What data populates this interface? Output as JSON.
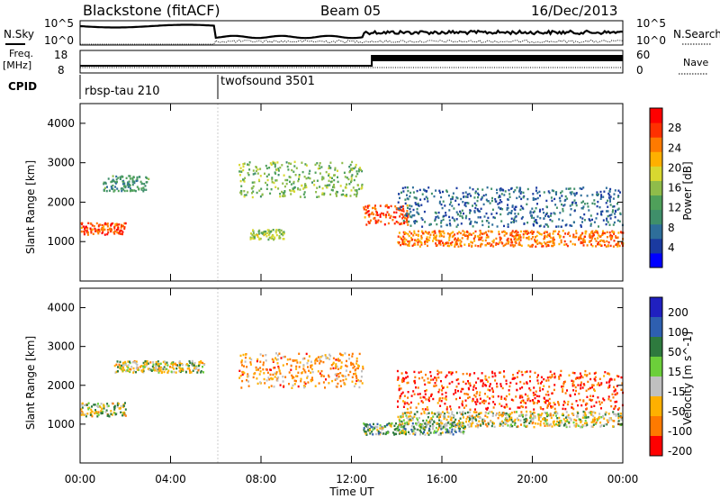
{
  "header": {
    "station": "Blackstone (fitACF)",
    "beam": "Beam 05",
    "date": "16/Dec/2013"
  },
  "noise_panel": {
    "left_label": "N.Sky",
    "right_label": "N.Search",
    "left_ticks": [
      "10^5",
      "10^0"
    ],
    "right_ticks": [
      "10^5",
      "10^0"
    ]
  },
  "freq_panel": {
    "left_label_1": "Freq.",
    "left_label_2": "[MHz]",
    "left_ticks": [
      "18",
      "8"
    ],
    "right_label": "Nave",
    "right_ticks": [
      "60",
      "0"
    ]
  },
  "cpid": {
    "label": "CPID",
    "modes": [
      {
        "name": "rbsp-tau 210",
        "start_hour": 0
      },
      {
        "name": "twofsound 3501",
        "start_hour": 6
      }
    ]
  },
  "chart_data": [
    {
      "type": "heatmap",
      "name": "power-panel",
      "ylabel": "Slant Range [km]",
      "yticks": [
        "4000",
        "3000",
        "2000",
        "1000"
      ],
      "ylim": [
        0,
        4500
      ],
      "xlim_hours": [
        0,
        24
      ],
      "colorbar": {
        "label": "Power [dB]",
        "ticks": [
          "28",
          "24",
          "20",
          "16",
          "12",
          "8",
          "4"
        ],
        "colors": [
          "#0000ff",
          "#1a3aa0",
          "#2e6e9a",
          "#3f8f6a",
          "#4fa05a",
          "#8fbc4a",
          "#d8d830",
          "#ffb000",
          "#ff7a00",
          "#ff3000",
          "#ff0000"
        ]
      },
      "echo_regions": [
        {
          "x": [
            0.0,
            2.0
          ],
          "y_center": 1350,
          "thickness": 300,
          "value_db": 26
        },
        {
          "x": [
            1.0,
            3.0
          ],
          "y_center": 2500,
          "thickness": 400,
          "value_db": 10
        },
        {
          "x": [
            7.0,
            12.5
          ],
          "y_center": 2600,
          "thickness": 900,
          "value_db": 14
        },
        {
          "x": [
            7.5,
            9.0
          ],
          "y_center": 1200,
          "thickness": 250,
          "value_db": 16
        },
        {
          "x": [
            12.5,
            14.5
          ],
          "y_center": 1700,
          "thickness": 500,
          "value_db": 26
        },
        {
          "x": [
            14.0,
            24.0
          ],
          "y_center": 1100,
          "thickness": 400,
          "value_db": 24
        },
        {
          "x": [
            14.0,
            24.0
          ],
          "y_center": 1900,
          "thickness": 1000,
          "value_db": 6
        }
      ]
    },
    {
      "type": "heatmap",
      "name": "velocity-panel",
      "ylabel": "Slant Range [km]",
      "yticks": [
        "4000",
        "3000",
        "2000",
        "1000"
      ],
      "ylim": [
        0,
        4500
      ],
      "xlim_hours": [
        0,
        24
      ],
      "xticks": [
        "00:00",
        "04:00",
        "08:00",
        "12:00",
        "16:00",
        "20:00",
        "00:00"
      ],
      "xlabel": "Time UT",
      "colorbar": {
        "label": "Velocity [m s^-1]",
        "ticks": [
          "200",
          "100",
          "50",
          "15",
          "-15",
          "-50",
          "-100",
          "-200"
        ],
        "colors": [
          "#2020c0",
          "#2e5fb0",
          "#2e7a3e",
          "#6ccf3a",
          "#c0c0c0",
          "#ffb000",
          "#ff7a00",
          "#ff0000"
        ]
      },
      "echo_regions": [
        {
          "x": [
            0.0,
            2.0
          ],
          "y_center": 1400,
          "thickness": 350,
          "value": 0
        },
        {
          "x": [
            1.5,
            5.5
          ],
          "y_center": 2500,
          "thickness": 300,
          "value": 0
        },
        {
          "x": [
            7.0,
            12.5
          ],
          "y_center": 2400,
          "thickness": 900,
          "value": -50
        },
        {
          "x": [
            12.5,
            17.0
          ],
          "y_center": 900,
          "thickness": 300,
          "value": 30
        },
        {
          "x": [
            14.0,
            24.0
          ],
          "y_center": 1150,
          "thickness": 400,
          "value": 0
        },
        {
          "x": [
            14.0,
            24.0
          ],
          "y_center": 1900,
          "thickness": 1000,
          "value": -100
        }
      ]
    }
  ]
}
